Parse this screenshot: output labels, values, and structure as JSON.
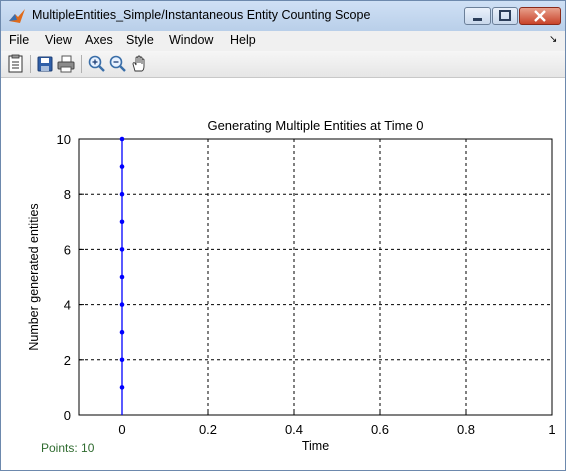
{
  "window": {
    "title": "MultipleEntities_Simple/Instantaneous Entity Counting Scope",
    "buttons": {
      "minimize": "",
      "maximize": "",
      "close": "×"
    }
  },
  "menu": {
    "items": [
      "File",
      "View",
      "Axes",
      "Style",
      "Window",
      "Help"
    ],
    "overflow_arrow": "↘"
  },
  "toolbar": {
    "tools": [
      "parameters-icon",
      "save-icon",
      "print-icon",
      "zoom-in-icon",
      "zoom-out-icon",
      "pan-icon"
    ]
  },
  "status": {
    "points": "Points: 10"
  },
  "chart_data": {
    "type": "scatter",
    "title": "Generating Multiple Entities at Time 0",
    "xlabel": "Time",
    "ylabel": "Number generated entities",
    "xlim": [
      -0.1,
      1
    ],
    "ylim": [
      0,
      10
    ],
    "xticks": [
      0,
      0.2,
      0.4,
      0.6,
      0.8,
      1
    ],
    "xtick_labels": [
      "0",
      "0.2",
      "0.4",
      "0.6",
      "0.8",
      "1"
    ],
    "yticks": [
      0,
      2,
      4,
      6,
      8,
      10
    ],
    "ytick_labels": [
      "0",
      "2",
      "4",
      "6",
      "8",
      "10"
    ],
    "grid": true,
    "series": [
      {
        "x": [
          0,
          0,
          0,
          0,
          0,
          0,
          0,
          0,
          0,
          0
        ],
        "y": [
          1,
          2,
          3,
          4,
          5,
          6,
          7,
          8,
          9,
          10
        ],
        "color": "#0000ff"
      }
    ]
  }
}
